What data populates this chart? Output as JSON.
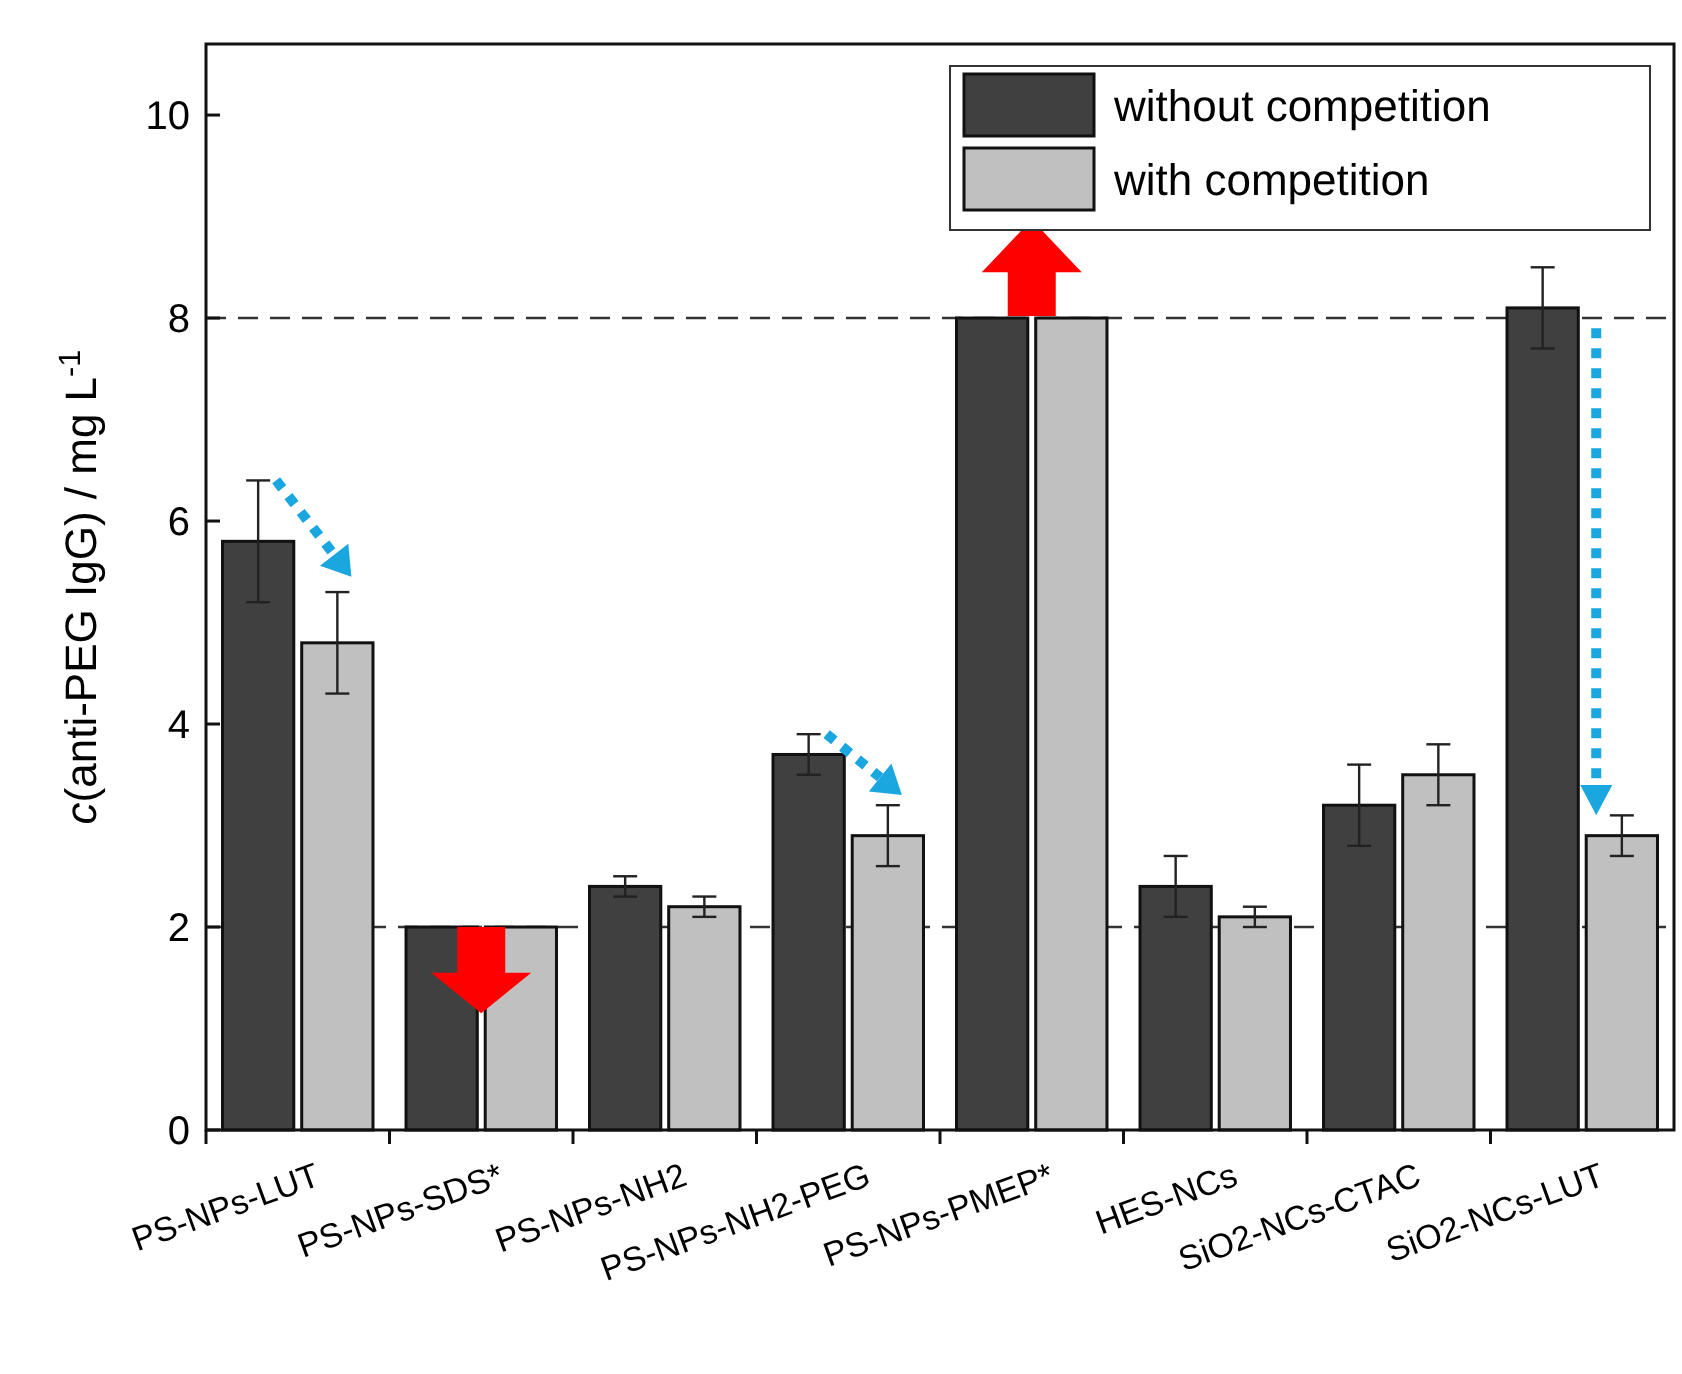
{
  "chart_data": {
    "type": "bar",
    "ylabel": "c(anti-PEG IgG) / mg L$^{-1}$",
    "categories": [
      "PS-NPs-LUT",
      "PS-NPs-SDS*",
      "PS-NPs-NH2",
      "PS-NPs-NH2-PEG",
      "PS-NPs-PMEP*",
      "HES-NCs",
      "SiO2-NCs-CTAC",
      "SiO2-NCs-LUT"
    ],
    "series": [
      {
        "name": "without competition",
        "color": "#404040",
        "values": [
          5.8,
          2.0,
          2.4,
          3.7,
          8.0,
          2.4,
          3.2,
          8.1
        ],
        "errors": [
          0.6,
          null,
          0.1,
          0.2,
          null,
          0.3,
          0.4,
          0.4
        ]
      },
      {
        "name": "with competition",
        "color": "#c0c0c0",
        "values": [
          4.8,
          2.0,
          2.2,
          2.9,
          8.0,
          2.1,
          3.5,
          2.9
        ],
        "errors": [
          0.5,
          null,
          0.1,
          0.3,
          null,
          0.1,
          0.3,
          0.2
        ]
      }
    ],
    "ylim": [
      0,
      10.7
    ],
    "yticks": [
      0,
      2,
      4,
      6,
      8,
      10
    ],
    "ref_lines": [
      {
        "axis": "y",
        "value": 2,
        "line_style": "dashed",
        "color": "#333333"
      },
      {
        "axis": "y",
        "value": 8,
        "line_style": "dashed",
        "color": "#333333"
      }
    ],
    "legend": "top right",
    "grid": false
  }
}
